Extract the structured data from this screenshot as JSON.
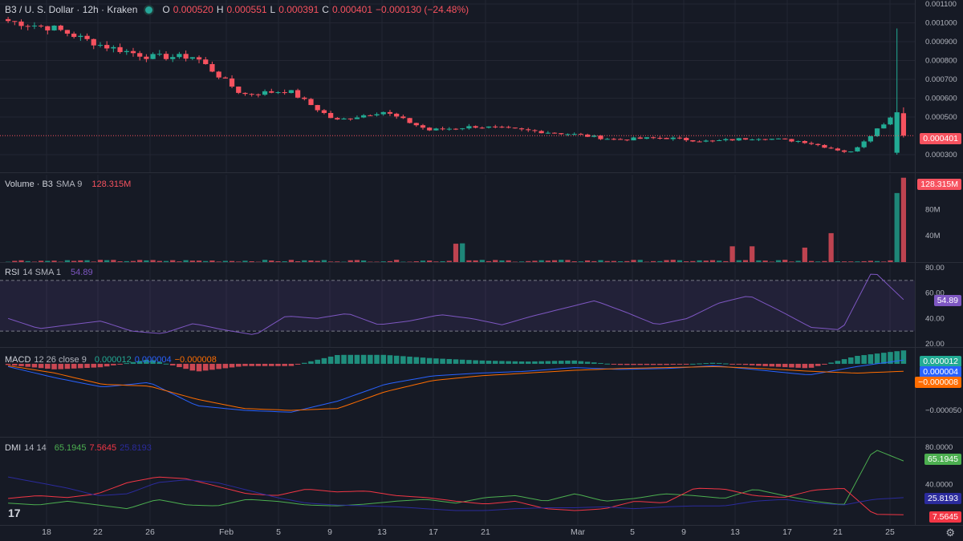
{
  "colors": {
    "bg": "#161a25",
    "grid": "#232632",
    "up": "#22ab94",
    "down": "#f7525f",
    "text": "#b2b5be",
    "rsi": "#7e57c2",
    "macd": "#2962ff",
    "signal": "#ff6d00",
    "diplus": "#4caf50",
    "diminus": "#f23645",
    "adx": "#2b2b9c"
  },
  "main": {
    "symbol": "B3 / U. S. Dollar · 12h · Kraken",
    "o_label": "O",
    "o": "0.000520",
    "h_label": "H",
    "h": "0.000551",
    "l_label": "L",
    "l": "0.000391",
    "c_label": "C",
    "c": "0.000401",
    "change": "−0.000130 (−24.48%)",
    "last_price_tag": "0.000401"
  },
  "volume": {
    "title": "Volume · B3",
    "sma": "SMA 9",
    "value": "128.315M",
    "tag": "128.315M"
  },
  "rsi": {
    "title": "RSI",
    "params": "14 SMA 1",
    "value": "54.89",
    "tag": "54.89"
  },
  "macd": {
    "title": "MACD",
    "params": "12 26 close 9",
    "hist": "0.000012",
    "macd": "0.000004",
    "signal": "−0.000008",
    "tag_hist": "0.000012",
    "tag_macd": "0.000004",
    "tag_signal": "−0.000008"
  },
  "dmi": {
    "title": "DMI",
    "params": "14 14",
    "plus": "65.1945",
    "minus": "7.5645",
    "adx": "25.8193",
    "tag_plus": "65.1945",
    "tag_adx": "25.8193",
    "tag_minus": "7.5645"
  },
  "branding": {
    "logo": "17",
    "settings_icon": "gear-icon"
  },
  "chart_data": [
    {
      "type": "candlestick",
      "title": "B3 / U. S. Dollar · 12h · Kraken",
      "x_ticks": [
        "18",
        "22",
        "26",
        "Feb",
        "5",
        "9",
        "13",
        "17",
        "21",
        "Mar",
        "5",
        "9",
        "13",
        "17",
        "21",
        "25"
      ],
      "y_ticks": [
        "0.001100",
        "0.001000",
        "0.000900",
        "0.000800",
        "0.000700",
        "0.000600",
        "0.000500",
        "0.000300"
      ],
      "ylim": [
        0.00027,
        0.0011
      ],
      "keypoints_close": [
        0.00101,
        0.00097,
        0.00088,
        0.00082,
        0.00082,
        0.00062,
        0.00064,
        0.00048,
        0.00053,
        0.00043,
        0.00045,
        0.00043,
        0.00041,
        0.00038,
        0.00039,
        0.00037,
        0.00039,
        0.00037,
        0.00031,
        0.00053,
        0.000401
      ],
      "last": {
        "open": 0.00052,
        "high": 0.000551,
        "low": 0.000391,
        "close": 0.000401
      }
    },
    {
      "type": "bar",
      "title": "Volume · B3 SMA 9",
      "y_ticks": [
        "120M",
        "80M",
        "40M"
      ],
      "ylim": [
        0,
        128
      ],
      "spikes_million": [
        {
          "x": "~9",
          "v": 30
        },
        {
          "x": "~Mar 3",
          "v": 25
        },
        {
          "x": "~Mar 5",
          "v": 44
        },
        {
          "x": "~Mar 11",
          "v": 32
        },
        {
          "x": "~Mar 26",
          "v": 105
        },
        {
          "x": "last",
          "v": 128.315
        }
      ]
    },
    {
      "type": "line",
      "title": "RSI 14 SMA 1",
      "y_ticks": [
        "80.00",
        "60.00",
        "40.00",
        "20.00"
      ],
      "ylim": [
        20,
        80
      ],
      "bands": [
        30,
        70
      ],
      "keypoints": [
        40,
        32,
        35,
        38,
        30,
        28,
        36,
        31,
        27,
        42,
        40,
        44,
        35,
        38,
        43,
        40,
        35,
        42,
        48,
        54,
        45,
        35,
        40,
        52,
        58,
        46,
        33,
        31,
        78,
        54.89
      ]
    },
    {
      "type": "line",
      "title": "MACD 12 26 close 9",
      "y_ticks": [
        "−0.000050"
      ],
      "ylim": [
        -7.5e-05,
        1.2e-05
      ],
      "series": [
        {
          "name": "MACD",
          "values": [
            -3e-06,
            -1.5e-05,
            -2.5e-05,
            -2e-05,
            -4.5e-05,
            -5e-05,
            -5.2e-05,
            -4e-05,
            -2.2e-05,
            -1.3e-05,
            -1e-05,
            -8e-06,
            -4e-06,
            -6e-06,
            -5e-06,
            -2e-06,
            -7e-06,
            -1.2e-05,
            -3e-06,
            4e-06
          ]
        },
        {
          "name": "Signal",
          "values": [
            -2e-06,
            -1e-05,
            -2.2e-05,
            -2.4e-05,
            -3.8e-05,
            -4.8e-05,
            -5e-05,
            -4.8e-05,
            -3e-05,
            -1.8e-05,
            -1.3e-05,
            -1e-05,
            -7e-06,
            -5e-06,
            -4e-06,
            -3e-06,
            -5e-06,
            -8e-06,
            -1e-05,
            -8e-06
          ]
        }
      ]
    },
    {
      "type": "line",
      "title": "DMI 14 14",
      "y_ticks": [
        "80.0000",
        "40.0000"
      ],
      "ylim": [
        0,
        85
      ],
      "series": [
        {
          "name": "+DI",
          "values": [
            20,
            18,
            22,
            18,
            14,
            24,
            18,
            17,
            24,
            22,
            18,
            17,
            19,
            22,
            24,
            20,
            26,
            28,
            22,
            30,
            22,
            25,
            30,
            28,
            25,
            35,
            28,
            22,
            18,
            78,
            65.1945
          ]
        },
        {
          "name": "−DI",
          "values": [
            25,
            28,
            26,
            30,
            42,
            48,
            46,
            38,
            30,
            28,
            35,
            32,
            33,
            28,
            26,
            22,
            19,
            22,
            14,
            12,
            14,
            22,
            20,
            36,
            35,
            28,
            26,
            34,
            36,
            8,
            7.5645
          ]
        },
        {
          "name": "ADX",
          "values": [
            48,
            42,
            36,
            28,
            30,
            42,
            45,
            42,
            34,
            26,
            20,
            18,
            17,
            16,
            14,
            12,
            12,
            14,
            15,
            15,
            16,
            14,
            16,
            17,
            17,
            22,
            24,
            20,
            18,
            24,
            25.8193
          ]
        }
      ]
    }
  ]
}
